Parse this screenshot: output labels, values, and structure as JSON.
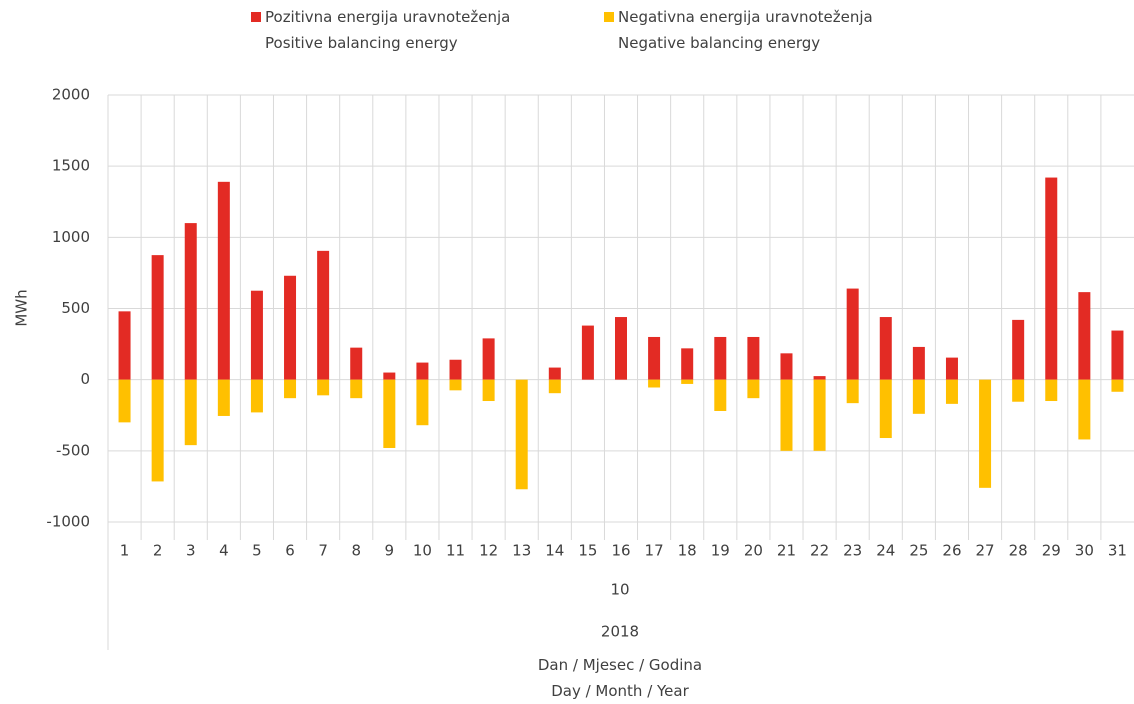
{
  "chart_data": {
    "type": "bar",
    "categories": [
      1,
      2,
      3,
      4,
      5,
      6,
      7,
      8,
      9,
      10,
      11,
      12,
      13,
      14,
      15,
      16,
      17,
      18,
      19,
      20,
      21,
      22,
      23,
      24,
      25,
      26,
      27,
      28,
      29,
      30,
      31
    ],
    "month": "10",
    "year": "2018",
    "x_label": "Dan / Mjesec / Godina\nDay / Month / Year",
    "y_label": "MWh",
    "series": [
      {
        "name": "Pozitivna energija uravnoteženja\nPositive balancing energy",
        "color": "#e32b24",
        "values": [
          480,
          875,
          1100,
          1390,
          625,
          730,
          905,
          225,
          50,
          120,
          140,
          290,
          0,
          85,
          380,
          440,
          300,
          220,
          300,
          300,
          185,
          25,
          640,
          440,
          230,
          155,
          0,
          420,
          1420,
          615,
          345
        ]
      },
      {
        "name": "Negativna energija uravnoteženja\nNegative balancing energy",
        "color": "#ffc000",
        "values": [
          -300,
          -715,
          -460,
          -255,
          -230,
          -130,
          -110,
          -130,
          -480,
          -320,
          -75,
          -150,
          -770,
          -95,
          0,
          0,
          -55,
          -30,
          -220,
          -130,
          -500,
          -500,
          -165,
          -410,
          -240,
          -170,
          -760,
          -155,
          -150,
          -420,
          -85
        ]
      }
    ],
    "ylim": [
      -1000,
      2000
    ],
    "yticks": [
      -1000,
      -500,
      0,
      500,
      1000,
      1500,
      2000
    ],
    "grid": true
  }
}
